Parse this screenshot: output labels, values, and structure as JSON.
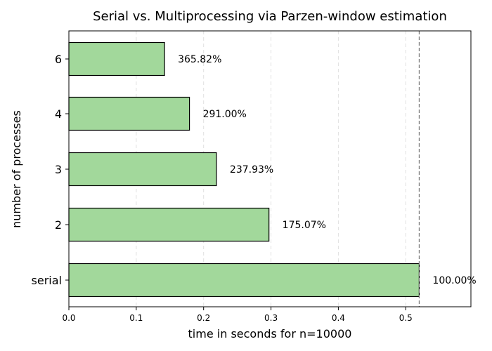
{
  "chart_data": {
    "type": "bar",
    "orientation": "horizontal",
    "title": "Serial vs. Multiprocessing via Parzen-window estimation",
    "xlabel": "time in seconds for n=10000",
    "ylabel": "number of processes",
    "categories": [
      "serial",
      "2",
      "3",
      "4",
      "6"
    ],
    "values": [
      0.52,
      0.297,
      0.219,
      0.179,
      0.142
    ],
    "data_labels": [
      "100.00%",
      "175.07%",
      "237.93%",
      "291.00%",
      "365.82%"
    ],
    "xlim": [
      0,
      0.6
    ],
    "xticks": [
      0.0,
      0.1,
      0.2,
      0.3,
      0.4,
      0.5
    ],
    "xtick_labels": [
      "0.0",
      "0.1",
      "0.2",
      "0.3",
      "0.4",
      "0.5"
    ],
    "reference_line_x": 0.52,
    "grid": "vertical dashed",
    "bar_color": "#a2d89b",
    "bar_edge_color": "#000000",
    "reference_line_color": "#777777"
  }
}
